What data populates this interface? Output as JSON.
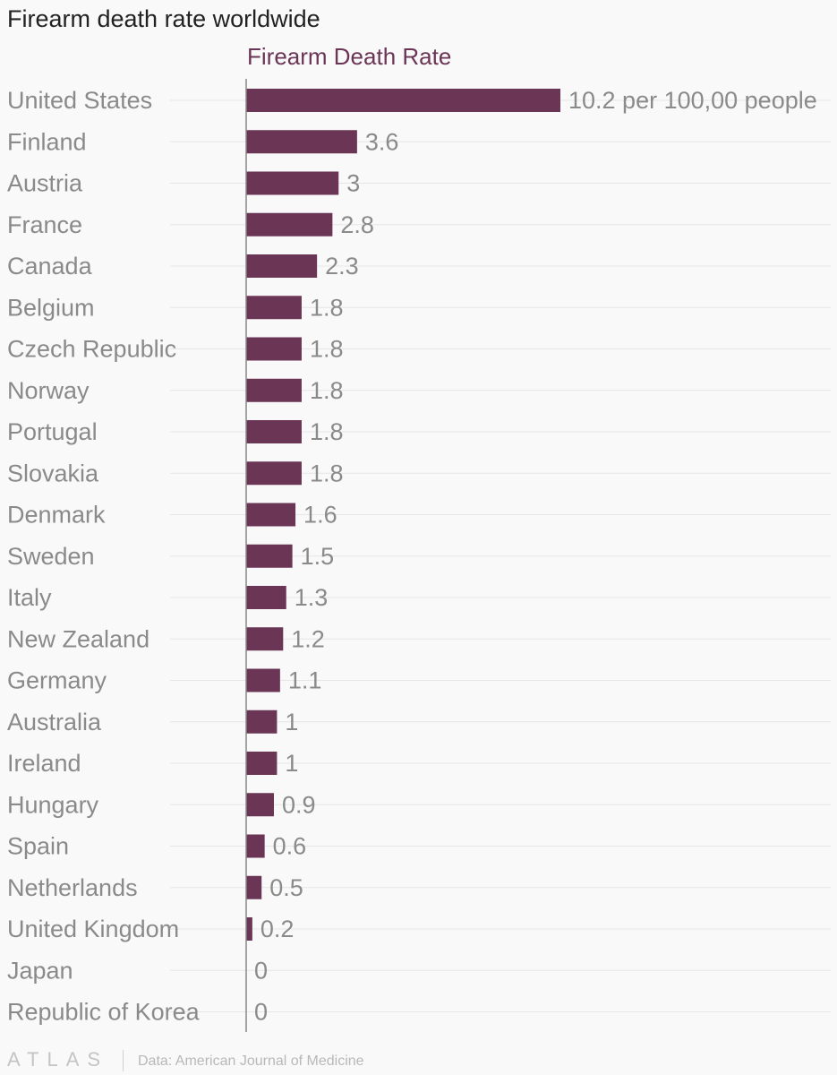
{
  "header": {
    "title": "Firearm death rate worldwide"
  },
  "footer": {
    "logo": "ATLAS",
    "source": "Data: American Journal of Medicine"
  },
  "colors": {
    "bar": "#6b3556",
    "series_title": "#6b3556",
    "category_label": "#8a8a8a",
    "value_label": "#8a8a8a",
    "gridline": "#e6e6e6",
    "axis": "#888888"
  },
  "chart_data": {
    "type": "bar",
    "orientation": "horizontal",
    "series": [
      {
        "name": "Firearm Death Rate",
        "values": [
          10.2,
          3.6,
          3,
          2.8,
          2.3,
          1.8,
          1.8,
          1.8,
          1.8,
          1.8,
          1.6,
          1.5,
          1.3,
          1.2,
          1.1,
          1,
          1,
          0.9,
          0.6,
          0.5,
          0.2,
          0,
          0
        ]
      }
    ],
    "categories": [
      "United States",
      "Finland",
      "Austria",
      "France",
      "Canada",
      "Belgium",
      "Czech Republic",
      "Norway",
      "Portugal",
      "Slovakia",
      "Denmark",
      "Sweden",
      "Italy",
      "New Zealand",
      "Germany",
      "Australia",
      "Ireland",
      "Hungary",
      "Spain",
      "Netherlands",
      "United Kingdom",
      "Japan",
      "Republic of Korea"
    ],
    "value_labels": [
      "10.2 per 100,00 people",
      "3.6",
      "3",
      "2.8",
      "2.3",
      "1.8",
      "1.8",
      "1.8",
      "1.8",
      "1.8",
      "1.6",
      "1.5",
      "1.3",
      "1.2",
      "1.1",
      "1",
      "1",
      "0.9",
      "0.6",
      "0.5",
      "0.2",
      "0",
      "0"
    ],
    "xlim": [
      0,
      10.2
    ],
    "grid": true,
    "legend": "none"
  }
}
